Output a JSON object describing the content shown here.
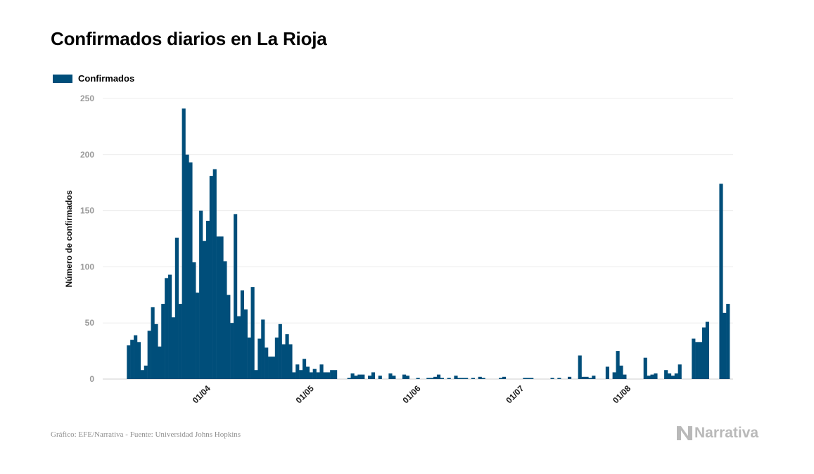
{
  "chart_data": {
    "type": "bar",
    "title": "Confirmados diarios en La Rioja",
    "legend": "Confirmados",
    "ylabel": "Número de confirmados",
    "xlabel": "",
    "ylim": [
      0,
      250
    ],
    "yticks": [
      "0",
      "50",
      "100",
      "150",
      "200",
      "250"
    ],
    "x_tick_labels": [
      "01/04",
      "01/05",
      "01/06",
      "01/07",
      "01/08"
    ],
    "x_tick_dates": [
      "2020-04-01",
      "2020-05-01",
      "2020-06-01",
      "2020-07-01",
      "2020-08-01"
    ],
    "x_range": [
      "2020-03-01",
      "2020-08-31"
    ],
    "series": [
      {
        "name": "Confirmados",
        "color": "#004e7a",
        "start_date": "2020-03-08",
        "values": [
          30,
          35,
          39,
          33,
          8,
          12,
          43,
          64,
          49,
          29,
          67,
          90,
          93,
          55,
          126,
          67,
          241,
          200,
          193,
          104,
          77,
          150,
          123,
          141,
          181,
          187,
          127,
          127,
          105,
          75,
          50,
          147,
          56,
          79,
          62,
          37,
          82,
          8,
          36,
          53,
          28,
          20,
          20,
          37,
          49,
          31,
          40,
          31,
          6,
          13,
          8,
          18,
          11,
          6,
          9,
          6,
          13,
          6,
          6,
          8,
          8,
          0,
          0,
          0,
          1,
          5,
          3,
          4,
          4,
          0,
          3,
          6,
          0,
          3,
          0,
          0,
          5,
          3,
          0,
          0,
          4,
          3,
          0,
          0,
          1,
          0,
          0,
          1,
          1,
          2,
          4,
          1,
          0,
          1,
          0,
          3,
          1,
          1,
          1,
          0,
          1,
          0,
          2,
          1,
          0,
          0,
          0,
          0,
          1,
          2,
          0,
          0,
          0,
          0,
          0,
          1,
          1,
          1,
          0,
          0,
          0,
          0,
          0,
          1,
          0,
          1,
          0,
          0,
          2,
          0,
          0,
          21,
          2,
          2,
          1,
          3,
          0,
          0,
          0,
          11,
          0,
          6,
          25,
          12,
          4,
          0,
          0,
          0,
          0,
          0,
          19,
          3,
          4,
          5,
          0,
          0,
          8,
          5,
          3,
          5,
          13,
          0,
          0,
          0,
          36,
          33,
          33,
          46,
          51,
          0,
          0,
          0,
          174,
          59,
          67
        ]
      }
    ],
    "footer": "Gráfico: EFE/Narrativa - Fuente: Universidad Johns Hopkins",
    "brand": "Narrativa"
  }
}
